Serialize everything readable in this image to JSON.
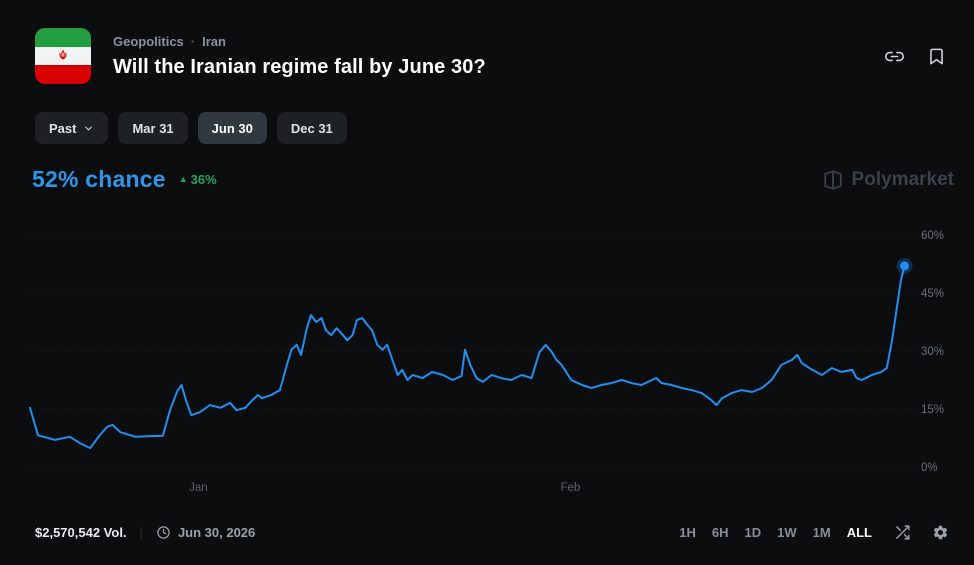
{
  "header": {
    "category": "Geopolitics",
    "separator": "·",
    "subcategory": "Iran",
    "title": "Will the Iranian regime fall by June 30?"
  },
  "filters": {
    "past_label": "Past",
    "dates": [
      {
        "label": "Mar 31",
        "active": false
      },
      {
        "label": "Jun 30",
        "active": true
      },
      {
        "label": "Dec 31",
        "active": false
      }
    ]
  },
  "price": {
    "value": "52% chance",
    "change_arrow": "▲",
    "change": "36%"
  },
  "watermark": {
    "label": "Polymarket"
  },
  "chart_data": {
    "type": "line",
    "title": "Jun 30 outcome probability over time",
    "ylim": [
      0,
      60
    ],
    "yticks": [
      "60%",
      "45%",
      "30%",
      "15%",
      "0%"
    ],
    "xticks": [
      "Jan",
      "Feb"
    ],
    "xtick_positions": [
      0.19,
      0.61
    ],
    "line_color": "#1f8ff5",
    "grid": true,
    "current_value": 52,
    "points": [
      [
        0.0,
        15.3
      ],
      [
        0.009,
        8.2
      ],
      [
        0.028,
        7.0
      ],
      [
        0.045,
        7.8
      ],
      [
        0.056,
        6.2
      ],
      [
        0.068,
        4.9
      ],
      [
        0.079,
        8.3
      ],
      [
        0.087,
        10.4
      ],
      [
        0.093,
        10.9
      ],
      [
        0.102,
        9.0
      ],
      [
        0.119,
        7.8
      ],
      [
        0.136,
        8.0
      ],
      [
        0.15,
        8.1
      ],
      [
        0.158,
        14.7
      ],
      [
        0.166,
        19.5
      ],
      [
        0.171,
        21.2
      ],
      [
        0.176,
        17.3
      ],
      [
        0.182,
        13.4
      ],
      [
        0.192,
        14.2
      ],
      [
        0.203,
        16.0
      ],
      [
        0.215,
        15.3
      ],
      [
        0.226,
        16.6
      ],
      [
        0.233,
        14.7
      ],
      [
        0.243,
        15.3
      ],
      [
        0.251,
        17.3
      ],
      [
        0.257,
        18.6
      ],
      [
        0.262,
        17.8
      ],
      [
        0.272,
        18.6
      ],
      [
        0.282,
        19.9
      ],
      [
        0.29,
        26.4
      ],
      [
        0.295,
        30.3
      ],
      [
        0.301,
        31.6
      ],
      [
        0.306,
        29.0
      ],
      [
        0.312,
        35.4
      ],
      [
        0.317,
        39.3
      ],
      [
        0.323,
        37.5
      ],
      [
        0.329,
        38.5
      ],
      [
        0.334,
        35.4
      ],
      [
        0.34,
        34.1
      ],
      [
        0.346,
        35.9
      ],
      [
        0.351,
        34.7
      ],
      [
        0.358,
        32.8
      ],
      [
        0.364,
        34.1
      ],
      [
        0.369,
        38.0
      ],
      [
        0.375,
        38.5
      ],
      [
        0.381,
        36.7
      ],
      [
        0.386,
        35.4
      ],
      [
        0.392,
        31.6
      ],
      [
        0.398,
        30.3
      ],
      [
        0.403,
        31.6
      ],
      [
        0.409,
        27.7
      ],
      [
        0.415,
        23.8
      ],
      [
        0.42,
        25.1
      ],
      [
        0.426,
        22.5
      ],
      [
        0.432,
        23.8
      ],
      [
        0.443,
        23.0
      ],
      [
        0.454,
        24.6
      ],
      [
        0.466,
        23.8
      ],
      [
        0.477,
        22.5
      ],
      [
        0.487,
        23.5
      ],
      [
        0.491,
        30.3
      ],
      [
        0.497,
        26.4
      ],
      [
        0.504,
        23.0
      ],
      [
        0.511,
        22.0
      ],
      [
        0.521,
        23.8
      ],
      [
        0.532,
        23.0
      ],
      [
        0.543,
        22.5
      ],
      [
        0.555,
        23.8
      ],
      [
        0.566,
        23.0
      ],
      [
        0.575,
        29.7
      ],
      [
        0.582,
        31.6
      ],
      [
        0.589,
        29.7
      ],
      [
        0.594,
        27.7
      ],
      [
        0.6,
        26.4
      ],
      [
        0.611,
        22.5
      ],
      [
        0.623,
        21.2
      ],
      [
        0.634,
        20.4
      ],
      [
        0.645,
        21.2
      ],
      [
        0.656,
        21.7
      ],
      [
        0.668,
        22.5
      ],
      [
        0.679,
        21.7
      ],
      [
        0.69,
        21.2
      ],
      [
        0.702,
        22.5
      ],
      [
        0.707,
        23.0
      ],
      [
        0.713,
        21.7
      ],
      [
        0.724,
        21.2
      ],
      [
        0.736,
        20.4
      ],
      [
        0.747,
        19.9
      ],
      [
        0.758,
        19.1
      ],
      [
        0.769,
        17.3
      ],
      [
        0.775,
        16.0
      ],
      [
        0.781,
        17.8
      ],
      [
        0.792,
        19.1
      ],
      [
        0.803,
        19.9
      ],
      [
        0.815,
        19.4
      ],
      [
        0.826,
        20.4
      ],
      [
        0.837,
        22.5
      ],
      [
        0.848,
        26.4
      ],
      [
        0.86,
        27.7
      ],
      [
        0.866,
        29.0
      ],
      [
        0.871,
        26.9
      ],
      [
        0.883,
        25.1
      ],
      [
        0.894,
        23.8
      ],
      [
        0.905,
        25.6
      ],
      [
        0.916,
        24.6
      ],
      [
        0.928,
        25.1
      ],
      [
        0.933,
        23.0
      ],
      [
        0.939,
        22.5
      ],
      [
        0.95,
        23.8
      ],
      [
        0.961,
        24.6
      ],
      [
        0.967,
        25.6
      ],
      [
        0.973,
        32.8
      ],
      [
        0.978,
        40.6
      ],
      [
        0.983,
        48.3
      ],
      [
        0.987,
        52.0
      ]
    ]
  },
  "footer": {
    "volume": "$2,570,542 Vol.",
    "separator": "|",
    "end_date": "Jun 30, 2026",
    "ranges": [
      {
        "label": "1H",
        "active": false
      },
      {
        "label": "6H",
        "active": false
      },
      {
        "label": "1D",
        "active": false
      },
      {
        "label": "1W",
        "active": false
      },
      {
        "label": "1M",
        "active": false
      },
      {
        "label": "ALL",
        "active": true
      }
    ]
  },
  "colors": {
    "background": "#0c0d0f",
    "accent_blue": "#2b97ec",
    "line_blue": "#1f8ff5",
    "positive_green": "#27a15c",
    "flag_green": "#239f40",
    "flag_red": "#da0000"
  }
}
